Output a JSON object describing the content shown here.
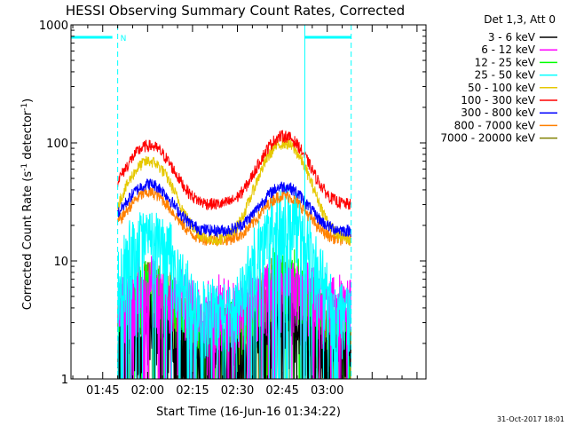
{
  "chart_data": {
    "type": "line",
    "title": "HESSI Observing Summary Count Rates, Corrected",
    "xlabel": "Start Time (16-Jun-16 01:34:22)",
    "ylabel": "Corrected Count Rate (s",
    "ylabel_sup1": "-1",
    "ylabel_mid": " detector",
    "ylabel_sup2": "-1",
    "ylabel_end": ")",
    "yscale": "log",
    "ylim": [
      1,
      1000
    ],
    "y_ticks": [
      {
        "value": 1,
        "label": "1"
      },
      {
        "value": 10,
        "label": "10"
      },
      {
        "value": 100,
        "label": "100"
      },
      {
        "value": 1000,
        "label": "1000"
      }
    ],
    "x_range_minutes": [
      94.4,
      213
    ],
    "x_ticks": [
      {
        "minute": 105,
        "label": "01:45"
      },
      {
        "minute": 120,
        "label": "02:00"
      },
      {
        "minute": 135,
        "label": "02:15"
      },
      {
        "minute": 150,
        "label": "02:30"
      },
      {
        "minute": 165,
        "label": "02:45"
      },
      {
        "minute": 180,
        "label": "03:00"
      }
    ],
    "legend_header": "Det 1,3, Att 0",
    "legend_position": "right",
    "night_marker_label": "N",
    "night_intervals_minutes": [
      [
        94.4,
        110
      ],
      [
        172.5,
        188
      ]
    ],
    "saa_like_lines_minutes": [
      110,
      188
    ],
    "peak_times_minutes": [
      120.5,
      165.5
    ],
    "series": [
      {
        "name": "3 - 6 keV",
        "color": "#000000",
        "base": 1.6,
        "peak1": 3.0,
        "peak2": 3.5
      },
      {
        "name": "6 - 12 keV",
        "color": "#ff00ff",
        "base": 4.3,
        "peak1": 6.5,
        "peak2": 7.0
      },
      {
        "name": "12 - 25 keV",
        "color": "#00ff00",
        "base": 2.6,
        "peak1": 6.0,
        "peak2": 8.0
      },
      {
        "name": "25 - 50 keV",
        "color": "#00ffff",
        "base": 3.9,
        "peak1": 18,
        "peak2": 27
      },
      {
        "name": "50 - 100 keV",
        "color": "#e6c800",
        "base": 15,
        "peak1": 70,
        "peak2": 100
      },
      {
        "name": "100 - 300 keV",
        "color": "#ff0000",
        "base": 30,
        "peak1": 95,
        "peak2": 115
      },
      {
        "name": "300 - 800 keV",
        "color": "#0000ff",
        "base": 18,
        "peak1": 45,
        "peak2": 43
      },
      {
        "name": "800 - 7000 keV",
        "color": "#ff8000",
        "base": 15,
        "peak1": 38,
        "peak2": 36
      },
      {
        "name": "7000 - 20000 keV",
        "color": "#808000",
        "base": 2.2,
        "peak1": 6.5,
        "peak2": 7.0
      }
    ]
  },
  "footer_timestamp": "31-Oct-2017 18:01"
}
